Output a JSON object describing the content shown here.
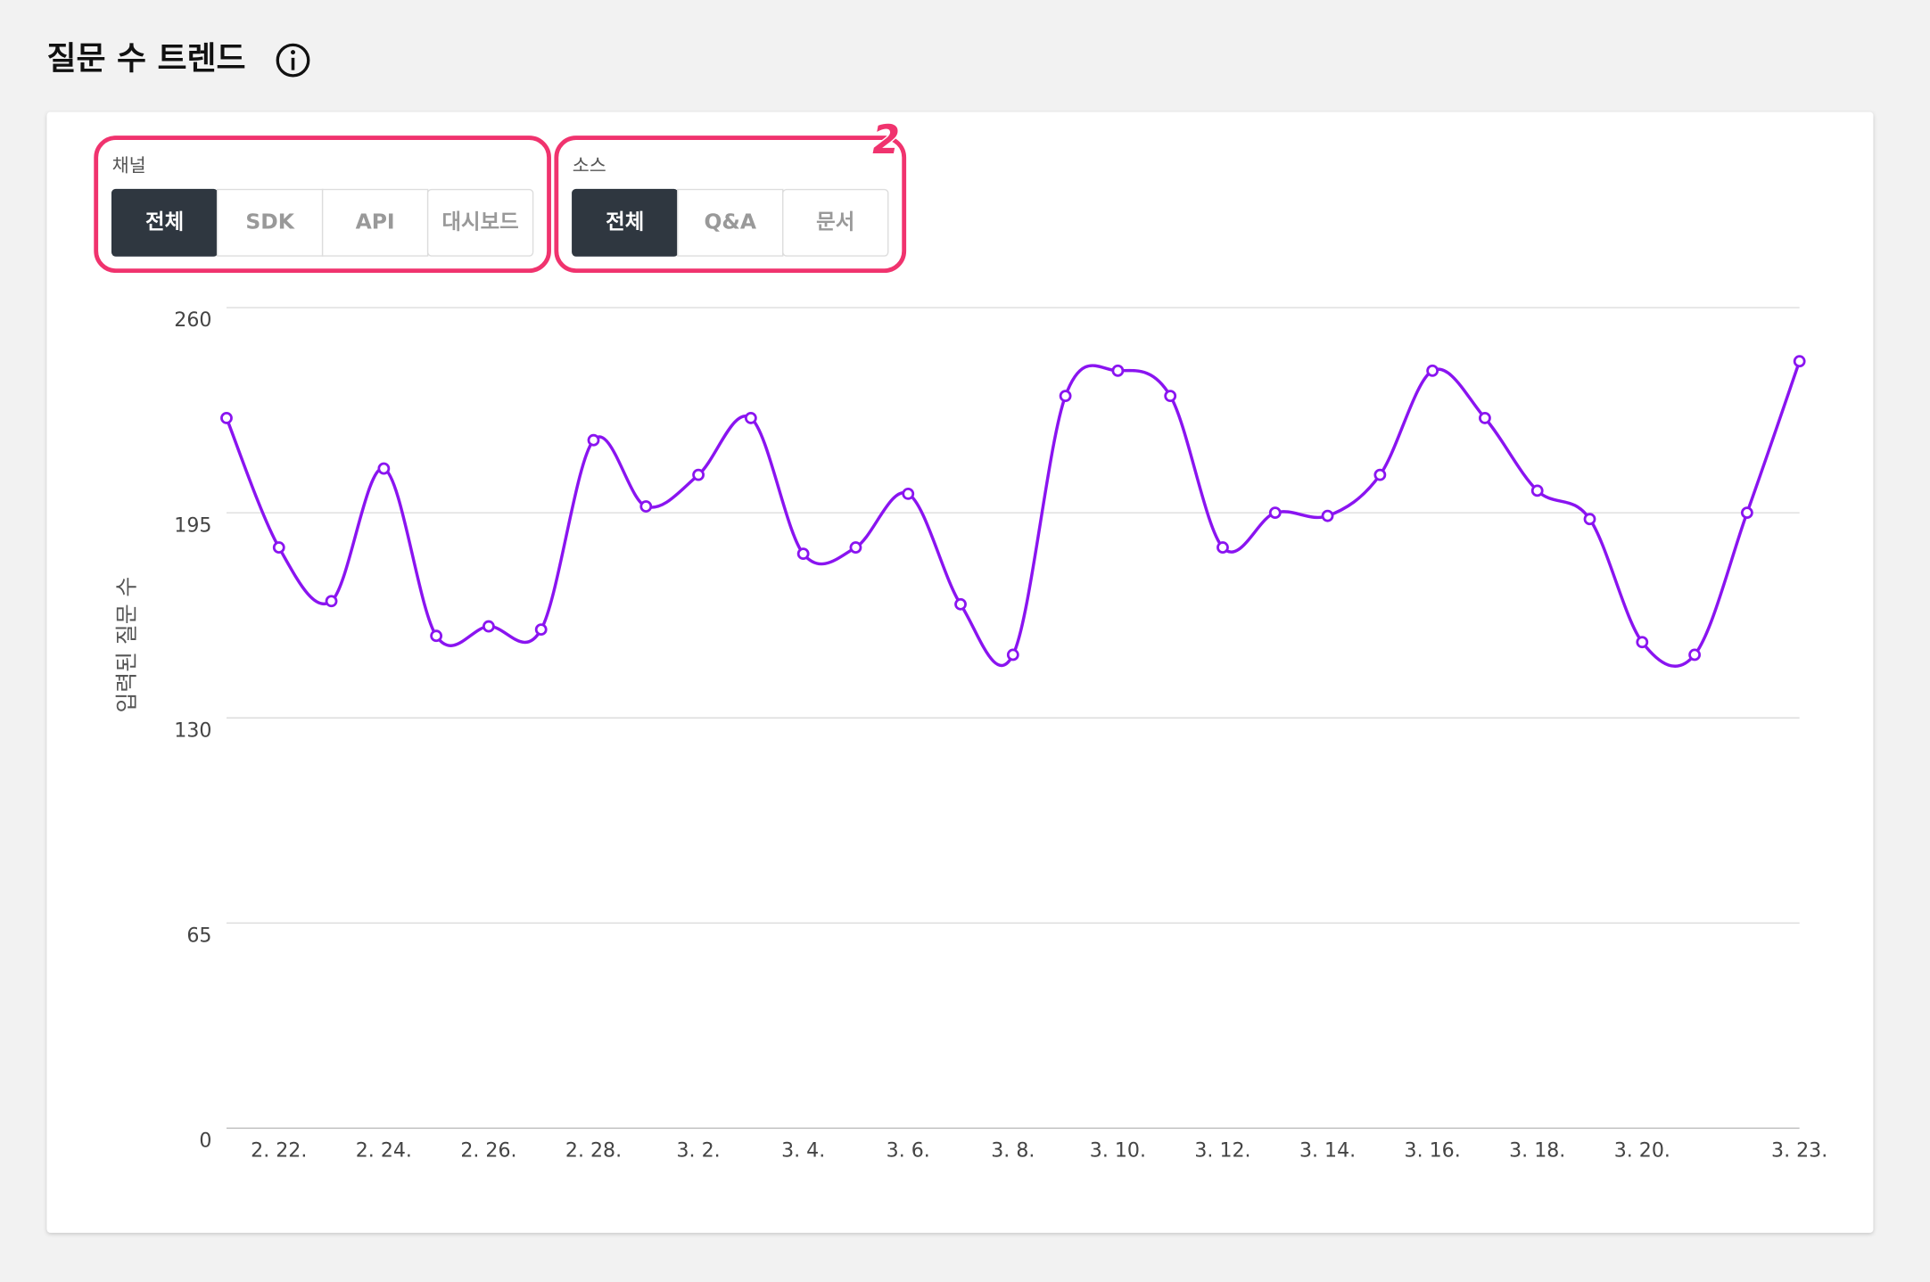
{
  "header": {
    "title": "질문 수 트렌드"
  },
  "filters": [
    {
      "label": "채널",
      "options": [
        "전체",
        "SDK",
        "API",
        "대시보드"
      ],
      "selected": 0
    },
    {
      "label": "소스",
      "options": [
        "전체",
        "Q&A",
        "문서"
      ],
      "selected": 0
    }
  ],
  "annotation": "2",
  "chart_data": {
    "type": "line",
    "y_label": "입력된 질문 수",
    "categories": [
      null,
      "2. 22.",
      null,
      "2. 24.",
      null,
      "2. 26.",
      null,
      "2. 28.",
      null,
      "3. 2.",
      null,
      "3. 4.",
      null,
      "3. 6.",
      null,
      "3. 8.",
      null,
      "3. 10.",
      null,
      "3. 12.",
      null,
      "3. 14.",
      null,
      "3. 16.",
      null,
      "3. 18.",
      null,
      "3. 20.",
      null,
      null,
      "3. 23."
    ],
    "series": [
      {
        "color": "#8a14f0",
        "values": [
          225,
          184,
          167,
          209,
          156,
          159,
          158,
          218,
          197,
          207,
          225,
          182,
          184,
          201,
          166,
          150,
          232,
          240,
          232,
          184,
          195,
          194,
          207,
          240,
          225,
          202,
          193,
          154,
          150,
          195,
          243
        ]
      }
    ],
    "ylim": [
      0,
      260
    ],
    "yticks": [
      0,
      65,
      130,
      195,
      260
    ],
    "grid": true
  }
}
